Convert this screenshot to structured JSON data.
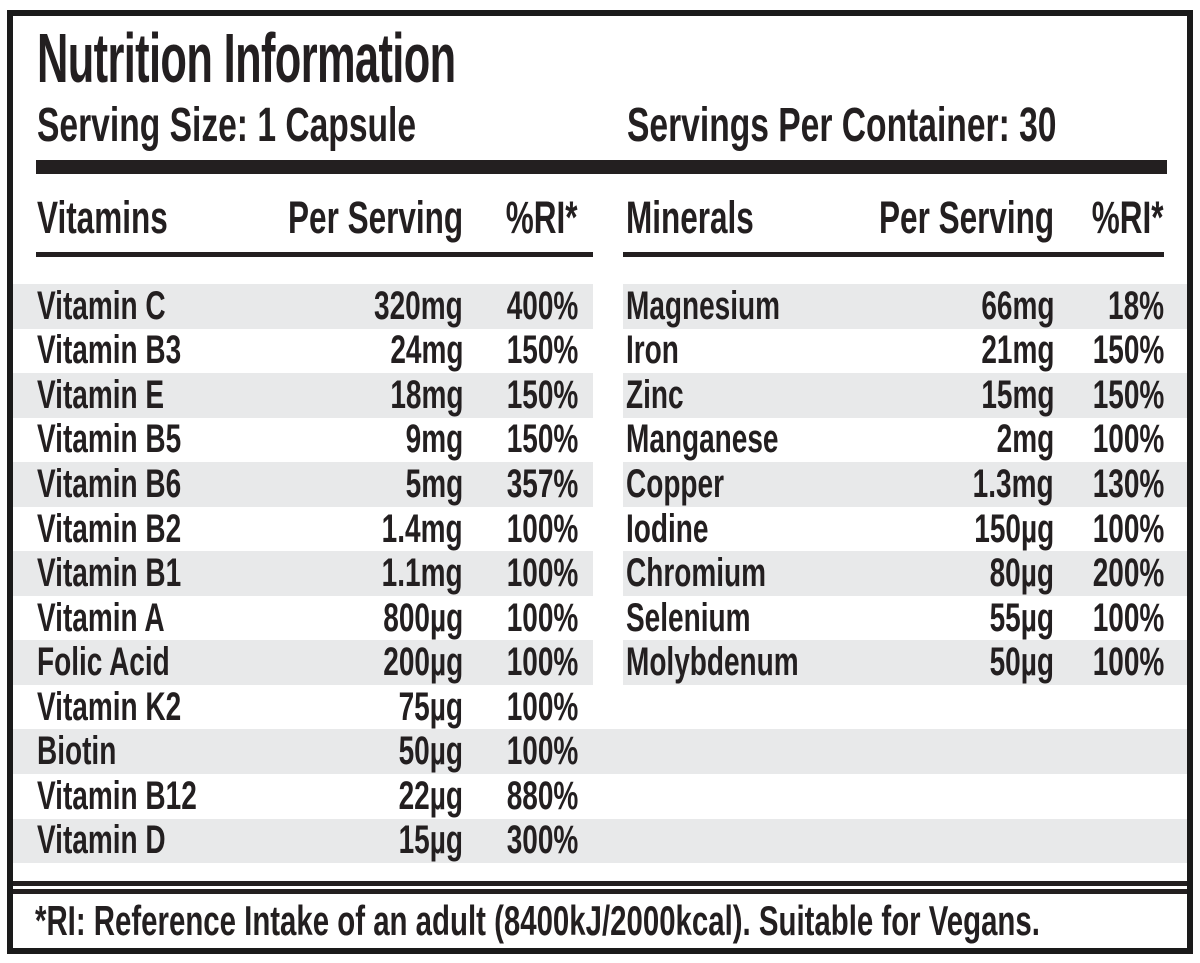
{
  "label": {
    "title": "Nutrition Information",
    "serving_size": "Serving Size: 1 Capsule",
    "servings_per_container": "Servings Per Container: 30",
    "footnote": "*RI: Reference Intake of an adult (8400kJ/2000kcal). Suitable for Vegans."
  },
  "vitamins": {
    "header": {
      "name": "Vitamins",
      "per_serving": "Per Serving",
      "ri": "%RI*"
    },
    "rows": [
      {
        "name": "Vitamin C",
        "amount": "320mg",
        "ri": "400%"
      },
      {
        "name": "Vitamin B3",
        "amount": "24mg",
        "ri": "150%"
      },
      {
        "name": "Vitamin E",
        "amount": "18mg",
        "ri": "150%"
      },
      {
        "name": "Vitamin B5",
        "amount": "9mg",
        "ri": "150%"
      },
      {
        "name": "Vitamin B6",
        "amount": "5mg",
        "ri": "357%"
      },
      {
        "name": "Vitamin B2",
        "amount": "1.4mg",
        "ri": "100%"
      },
      {
        "name": "Vitamin B1",
        "amount": "1.1mg",
        "ri": "100%"
      },
      {
        "name": "Vitamin A",
        "amount": "800µg",
        "ri": "100%"
      },
      {
        "name": "Folic Acid",
        "amount": "200µg",
        "ri": "100%"
      },
      {
        "name": "Vitamin K2",
        "amount": "75µg",
        "ri": "100%"
      },
      {
        "name": "Biotin",
        "amount": "50µg",
        "ri": "100%"
      },
      {
        "name": "Vitamin B12",
        "amount": "22µg",
        "ri": "880%"
      },
      {
        "name": "Vitamin D",
        "amount": "15µg",
        "ri": "300%"
      }
    ]
  },
  "minerals": {
    "header": {
      "name": "Minerals",
      "per_serving": "Per Serving",
      "ri": "%RI*"
    },
    "rows": [
      {
        "name": "Magnesium",
        "amount": "66mg",
        "ri": "18%"
      },
      {
        "name": "Iron",
        "amount": "21mg",
        "ri": "150%"
      },
      {
        "name": "Zinc",
        "amount": "15mg",
        "ri": "150%"
      },
      {
        "name": "Manganese",
        "amount": "2mg",
        "ri": "100%"
      },
      {
        "name": "Copper",
        "amount": "1.3mg",
        "ri": "130%"
      },
      {
        "name": "Iodine",
        "amount": "150µg",
        "ri": "100%"
      },
      {
        "name": "Chromium",
        "amount": "80µg",
        "ri": "200%"
      },
      {
        "name": "Selenium",
        "amount": "55µg",
        "ri": "100%"
      },
      {
        "name": "Molybdenum",
        "amount": "50µg",
        "ri": "100%"
      }
    ]
  },
  "colors": {
    "ink": "#231f20",
    "stripe": "#e8e9ea",
    "border": "#1a1a1a",
    "background": "#ffffff"
  }
}
